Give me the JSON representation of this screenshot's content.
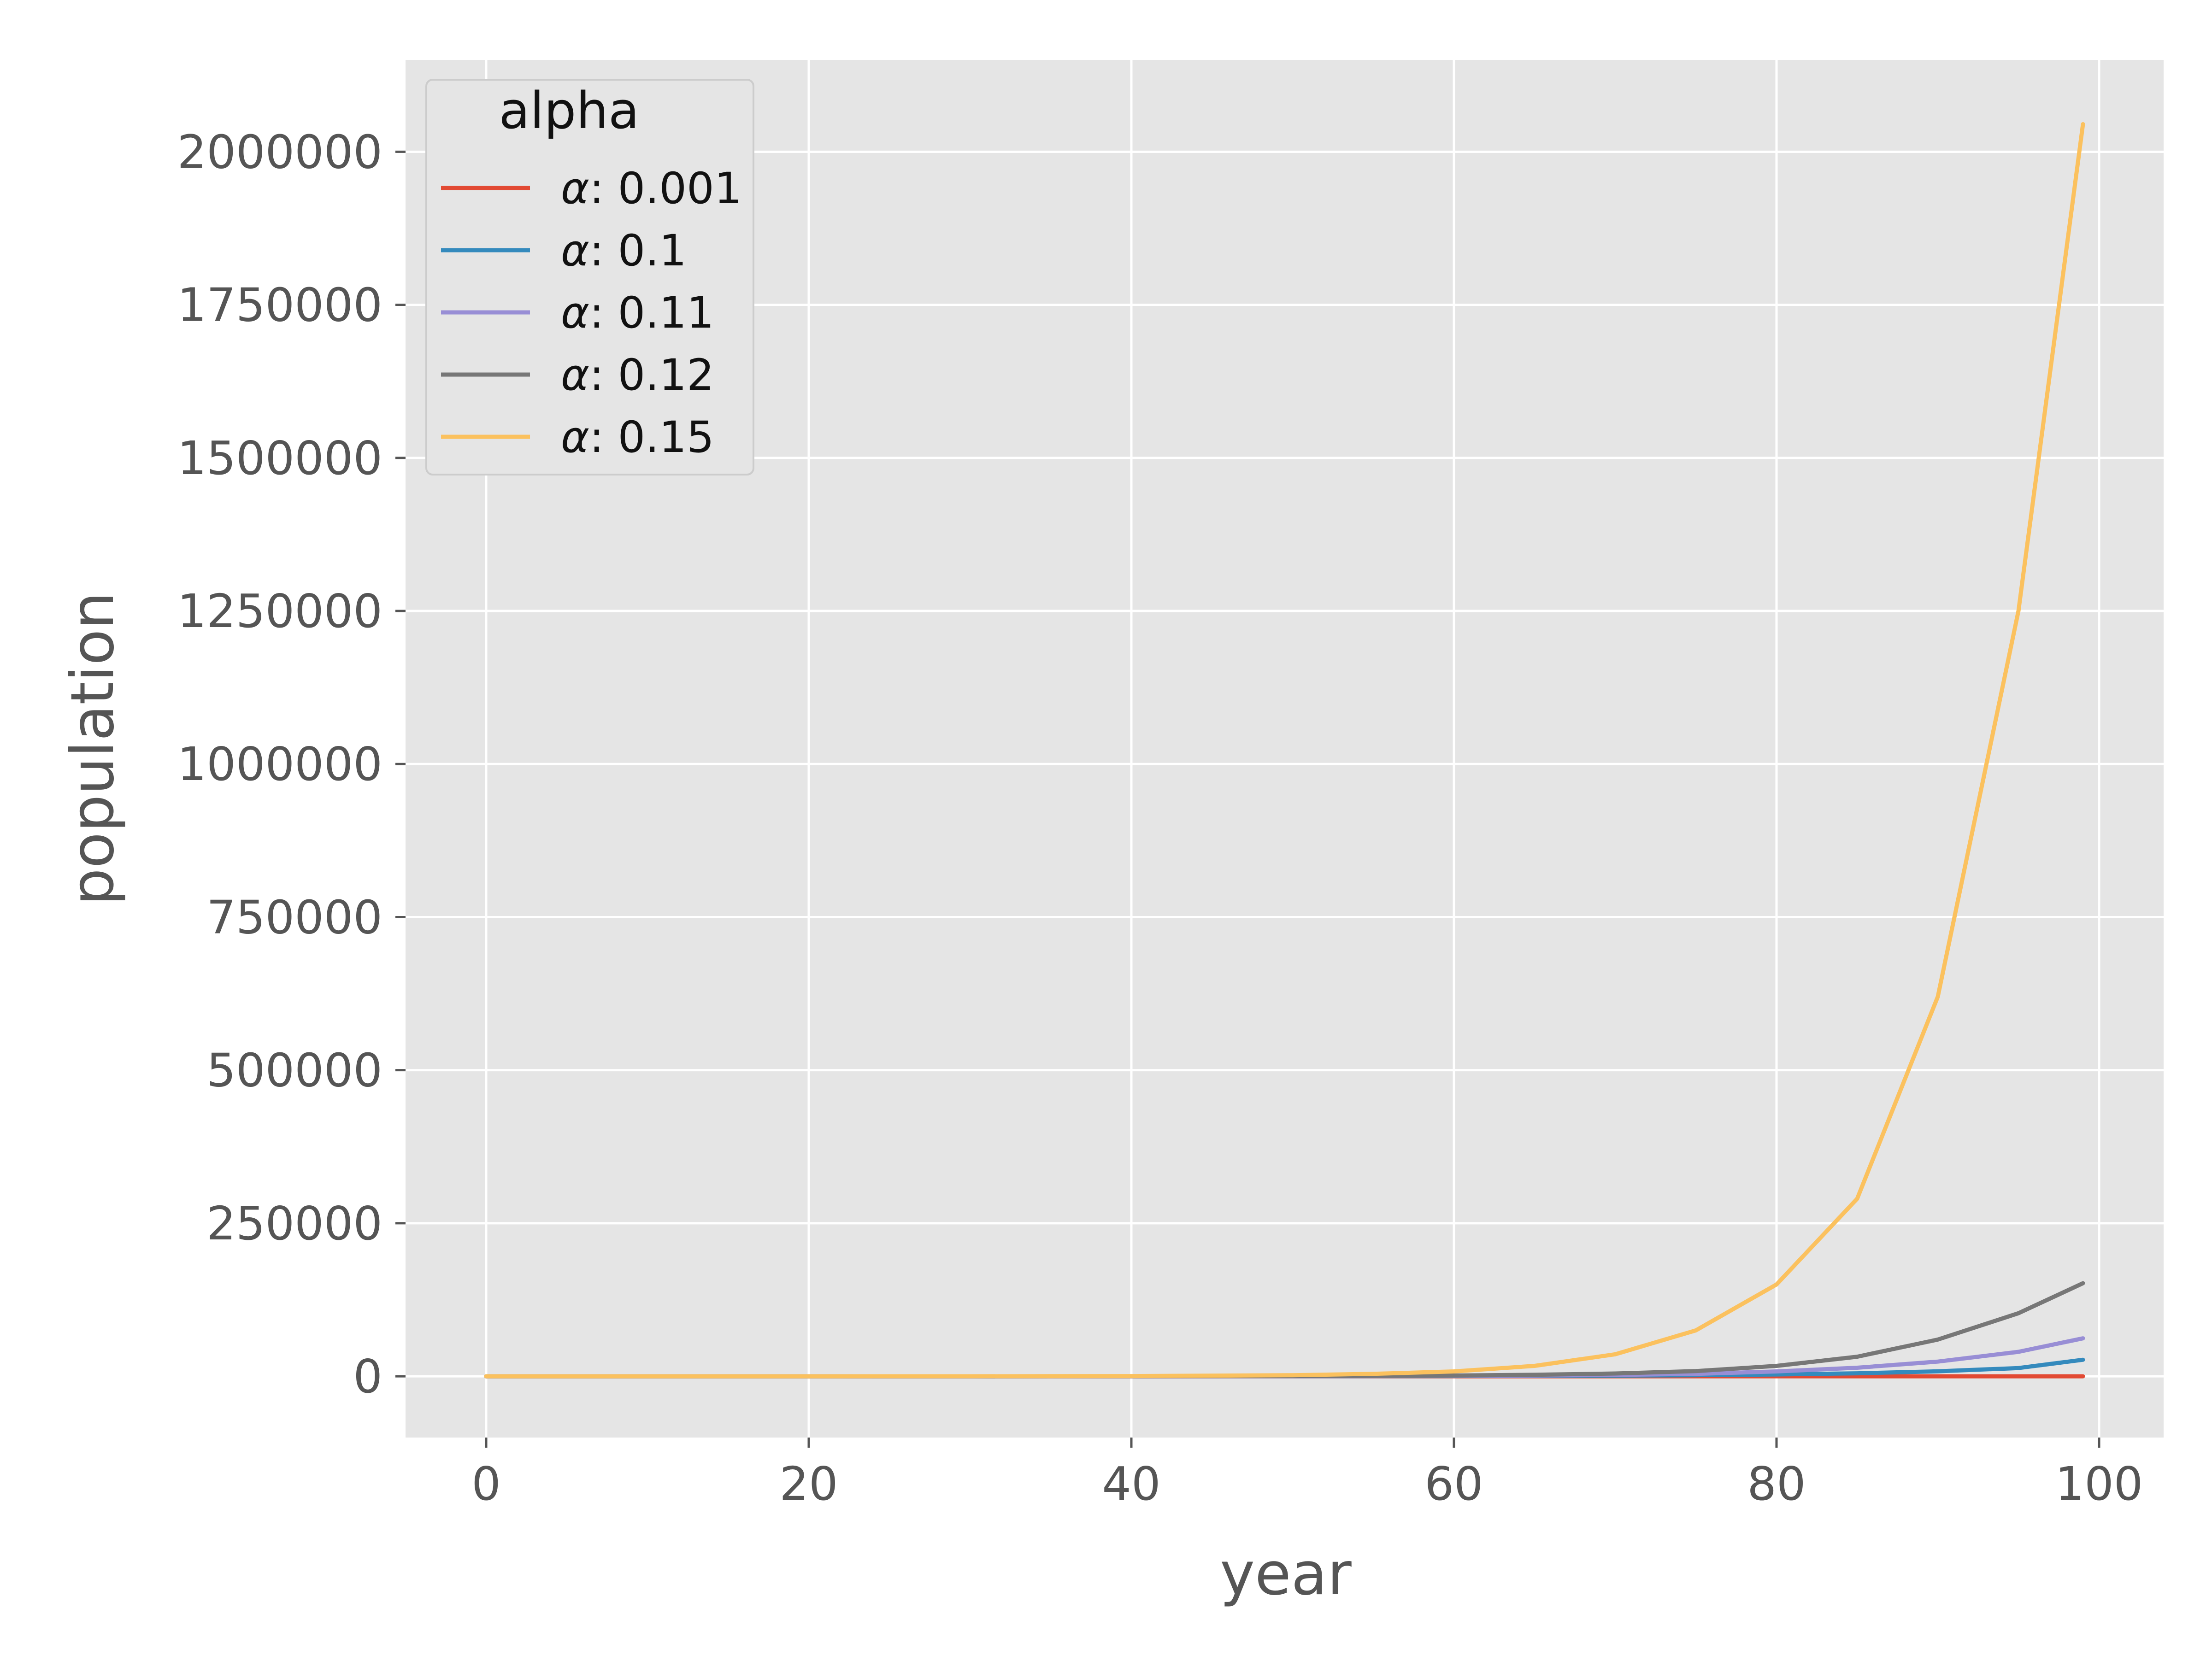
{
  "chart_data": {
    "type": "line",
    "title": "",
    "xlabel": "year",
    "ylabel": "population",
    "xlim": [
      -5,
      104
    ],
    "ylim": [
      -100000,
      2150000
    ],
    "xticks": [
      0,
      20,
      40,
      60,
      80,
      100
    ],
    "xtick_labels": [
      "0",
      "20",
      "40",
      "60",
      "80",
      "100"
    ],
    "yticks": [
      0,
      250000,
      500000,
      750000,
      1000000,
      1250000,
      1500000,
      1750000,
      2000000
    ],
    "ytick_labels": [
      "0",
      "250000",
      "500000",
      "750000",
      "1000000",
      "1250000",
      "1500000",
      "1750000",
      "2000000"
    ],
    "grid": true,
    "legend": {
      "title": "alpha",
      "position": "upper-left"
    },
    "background_color": "#e5e5e5",
    "x": [
      0,
      10,
      20,
      30,
      40,
      50,
      55,
      60,
      65,
      70,
      75,
      80,
      85,
      90,
      95,
      99
    ],
    "series": [
      {
        "name": "α: 0.001",
        "legend_symbol": "α",
        "legend_value": ": 0.001",
        "color": "#e24a33",
        "values": [
          1,
          1,
          1,
          1,
          1,
          1,
          1,
          1,
          1,
          1,
          1,
          1,
          1,
          1,
          1,
          1
        ]
      },
      {
        "name": "α: 0.1",
        "legend_symbol": "α",
        "legend_value": ": 0.1",
        "color": "#348abd",
        "values": [
          1,
          3,
          7,
          20,
          55,
          150,
          240,
          400,
          650,
          1100,
          1800,
          3000,
          4900,
          8100,
          13500,
          27000
        ]
      },
      {
        "name": "α: 0.11",
        "legend_symbol": "α",
        "legend_value": ": 0.11",
        "color": "#988ed5",
        "values": [
          1,
          3,
          9,
          27,
          81,
          240,
          420,
          740,
          1300,
          2250,
          4000,
          8000,
          14000,
          24000,
          40000,
          62000
        ]
      },
      {
        "name": "α: 0.12",
        "legend_symbol": "α",
        "legend_value": ": 0.12",
        "color": "#777777",
        "values": [
          1,
          3,
          11,
          36,
          120,
          400,
          730,
          1300,
          2500,
          4600,
          8500,
          17000,
          32000,
          60000,
          103000,
          152000
        ]
      },
      {
        "name": "α: 0.15",
        "legend_symbol": "α",
        "legend_value": ": 0.15",
        "color": "#fbc15e",
        "values": [
          1,
          5,
          20,
          90,
          400,
          1800,
          4000,
          8000,
          17000,
          36000,
          75000,
          150000,
          290000,
          620000,
          1250000,
          2045000
        ]
      }
    ]
  }
}
